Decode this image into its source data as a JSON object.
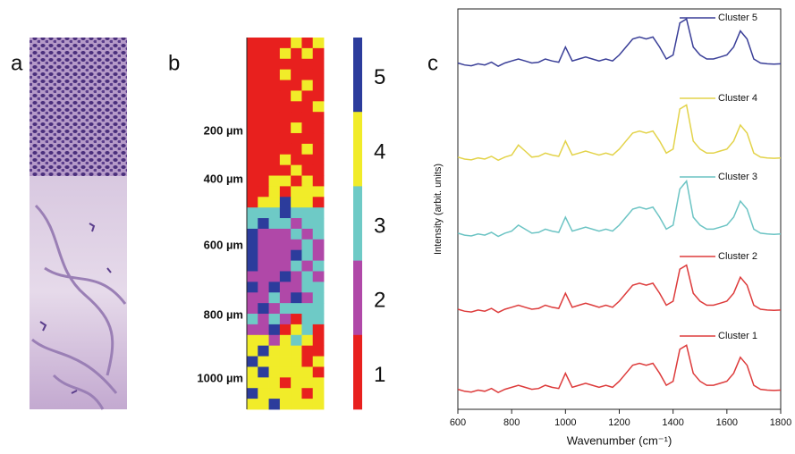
{
  "panel_a": {
    "label": "a"
  },
  "panel_b": {
    "label": "b",
    "depth_labels": [
      "200 µm",
      "400 µm",
      "600 µm",
      "800 µm",
      "1000 µm"
    ],
    "colorbar": {
      "labels": [
        "5",
        "4",
        "3",
        "2",
        "1"
      ],
      "colors": [
        "#2c3c9c",
        "#f1ec29",
        "#6ecac6",
        "#b048a8",
        "#e8201e"
      ]
    },
    "cluster_colors": [
      "#e8201e",
      "#b048a8",
      "#6ecac6",
      "#f1ec29",
      "#2c3c9c"
    ],
    "grid": [
      [
        1,
        1,
        1,
        1,
        4,
        1,
        4
      ],
      [
        1,
        1,
        1,
        4,
        1,
        4,
        1
      ],
      [
        1,
        1,
        1,
        1,
        1,
        1,
        1
      ],
      [
        1,
        1,
        1,
        4,
        1,
        1,
        1
      ],
      [
        1,
        1,
        1,
        1,
        1,
        4,
        1
      ],
      [
        1,
        1,
        1,
        1,
        4,
        1,
        1
      ],
      [
        1,
        1,
        1,
        1,
        1,
        1,
        4
      ],
      [
        1,
        1,
        1,
        1,
        1,
        1,
        1
      ],
      [
        1,
        1,
        1,
        1,
        4,
        1,
        1
      ],
      [
        1,
        1,
        1,
        1,
        1,
        1,
        1
      ],
      [
        1,
        1,
        1,
        1,
        1,
        4,
        1
      ],
      [
        1,
        1,
        1,
        4,
        1,
        1,
        1
      ],
      [
        1,
        1,
        1,
        1,
        4,
        1,
        1
      ],
      [
        1,
        1,
        4,
        4,
        1,
        4,
        1
      ],
      [
        1,
        1,
        4,
        1,
        4,
        4,
        4
      ],
      [
        1,
        4,
        4,
        5,
        4,
        4,
        1
      ],
      [
        3,
        3,
        3,
        5,
        3,
        3,
        3
      ],
      [
        3,
        5,
        3,
        3,
        2,
        3,
        3
      ],
      [
        5,
        2,
        2,
        2,
        3,
        2,
        3
      ],
      [
        5,
        2,
        2,
        2,
        2,
        3,
        2
      ],
      [
        5,
        2,
        2,
        2,
        5,
        3,
        2
      ],
      [
        5,
        2,
        2,
        2,
        3,
        2,
        3
      ],
      [
        2,
        2,
        2,
        5,
        2,
        3,
        2
      ],
      [
        5,
        2,
        5,
        2,
        2,
        3,
        3
      ],
      [
        2,
        2,
        3,
        2,
        5,
        2,
        3
      ],
      [
        2,
        5,
        2,
        3,
        3,
        3,
        3
      ],
      [
        3,
        2,
        3,
        2,
        1,
        3,
        3
      ],
      [
        2,
        2,
        5,
        1,
        4,
        3,
        1
      ],
      [
        4,
        4,
        2,
        4,
        3,
        4,
        1
      ],
      [
        4,
        5,
        4,
        4,
        4,
        1,
        1
      ],
      [
        5,
        4,
        4,
        4,
        4,
        1,
        4
      ],
      [
        4,
        5,
        4,
        4,
        4,
        4,
        1
      ],
      [
        4,
        4,
        4,
        1,
        4,
        4,
        4
      ],
      [
        5,
        4,
        4,
        4,
        4,
        1,
        4
      ],
      [
        4,
        4,
        5,
        4,
        4,
        4,
        4
      ]
    ]
  },
  "chart_data": {
    "type": "line",
    "panel_label": "c",
    "x_label": "Wavenumber (cm⁻¹)",
    "y_label": "Intensity (arbit. units)",
    "xlim": [
      600,
      1800
    ],
    "xticks": [
      600,
      800,
      1000,
      1200,
      1400,
      1600,
      1800
    ],
    "ylim": [
      0,
      100
    ],
    "x": [
      600,
      625,
      650,
      675,
      700,
      725,
      750,
      775,
      800,
      825,
      850,
      875,
      900,
      925,
      950,
      975,
      1000,
      1025,
      1050,
      1075,
      1100,
      1125,
      1150,
      1175,
      1200,
      1225,
      1250,
      1275,
      1300,
      1325,
      1350,
      1375,
      1400,
      1425,
      1450,
      1475,
      1500,
      1525,
      1550,
      1575,
      1600,
      1625,
      1650,
      1675,
      1700,
      1725,
      1750,
      1775,
      1800
    ],
    "series": [
      {
        "name": "Cluster 5",
        "color": "#3a3f98",
        "values": [
          86.5,
          86,
          85.8,
          86.3,
          86,
          86.7,
          85.7,
          86.5,
          87,
          87.5,
          87,
          86.5,
          86.7,
          87.5,
          87,
          86.7,
          90.5,
          87,
          87.5,
          88,
          87.5,
          87,
          87.5,
          87,
          88.5,
          90.5,
          92.5,
          93,
          92.5,
          93,
          90.5,
          87.5,
          88.5,
          96.5,
          97.5,
          90.5,
          88.5,
          87.5,
          87.5,
          88,
          88.5,
          90.5,
          94.5,
          92.5,
          87.5,
          86.5,
          86.3,
          86.2,
          86.3
        ]
      },
      {
        "name": "Cluster 4",
        "color": "#e3d34a",
        "values": [
          63,
          62.5,
          62.3,
          62.8,
          62.5,
          63.2,
          62.2,
          63,
          63.5,
          66,
          64.5,
          63,
          63.2,
          64,
          63.5,
          63.2,
          67,
          63.5,
          64,
          64.5,
          64,
          63.5,
          64,
          63.5,
          65,
          67,
          69,
          69.5,
          69,
          69.5,
          67,
          64,
          65,
          75,
          76,
          67,
          65,
          64,
          64,
          64.5,
          65,
          67,
          71,
          69,
          64,
          63,
          62.8,
          62.7,
          62.8
        ]
      },
      {
        "name": "Cluster 3",
        "color": "#6cc4c4",
        "values": [
          44,
          43.5,
          43.3,
          43.8,
          43.5,
          44.2,
          43.2,
          44,
          44.5,
          46,
          45,
          44,
          44.2,
          45,
          44.5,
          44.2,
          48,
          44.5,
          45,
          45.5,
          45,
          44.5,
          45,
          44.5,
          46,
          48,
          50,
          50.5,
          50,
          50.5,
          48,
          45,
          46,
          55,
          57,
          48,
          46,
          45,
          45,
          45.5,
          46,
          48,
          52,
          50,
          45,
          44,
          43.8,
          43.7,
          43.8
        ]
      },
      {
        "name": "Cluster 2",
        "color": "#dd3b3b",
        "values": [
          25,
          24.5,
          24.3,
          24.8,
          24.5,
          25.2,
          24.2,
          25,
          25.5,
          26,
          25.5,
          25,
          25.2,
          26,
          25.5,
          25.2,
          29,
          25.5,
          26,
          26.5,
          26,
          25.5,
          26,
          25.5,
          27,
          29,
          31,
          31.5,
          31,
          31.5,
          29,
          26,
          27,
          35,
          36,
          29,
          27,
          26,
          26,
          26.5,
          27,
          29,
          33,
          31,
          26,
          25,
          24.8,
          24.7,
          24.8
        ]
      },
      {
        "name": "Cluster 1",
        "color": "#dd3b3b",
        "values": [
          5,
          4.5,
          4.3,
          4.8,
          4.5,
          5.2,
          4.2,
          5,
          5.5,
          6,
          5.5,
          5,
          5.2,
          6,
          5.5,
          5.2,
          9,
          5.5,
          6,
          6.5,
          6,
          5.5,
          6,
          5.5,
          7,
          9,
          11,
          11.5,
          11,
          11.5,
          9,
          6,
          7,
          15,
          16,
          9,
          7,
          6,
          6,
          6.5,
          7,
          9,
          13,
          11,
          6,
          5,
          4.8,
          4.7,
          4.8
        ]
      }
    ]
  }
}
